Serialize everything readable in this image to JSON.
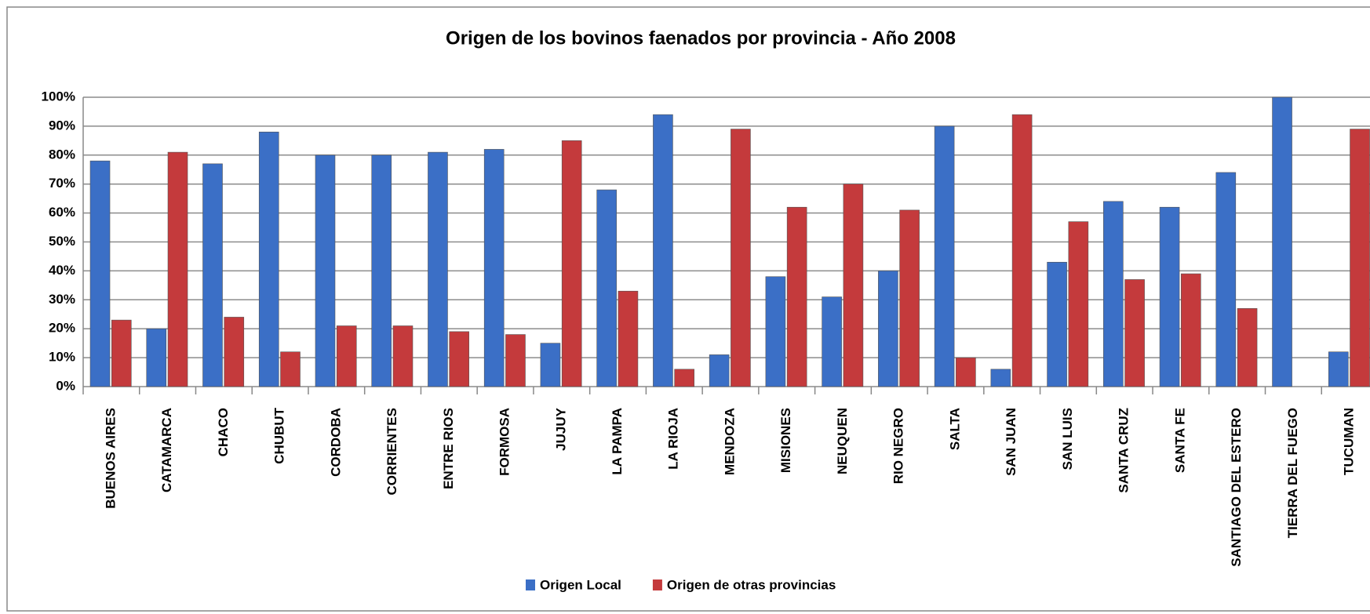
{
  "chart_data": {
    "type": "bar",
    "title": "Origen de los bovinos faenados por provincia - Año 2008",
    "categories": [
      "BUENOS AIRES",
      "CATAMARCA",
      "CHACO",
      "CHUBUT",
      "CORDOBA",
      "CORRIENTES",
      "ENTRE RIOS",
      "FORMOSA",
      "JUJUY",
      "LA PAMPA",
      "LA RIOJA",
      "MENDOZA",
      "MISIONES",
      "NEUQUEN",
      "RIO NEGRO",
      "SALTA",
      "SAN JUAN",
      "SAN LUIS",
      "SANTA CRUZ",
      "SANTA FE",
      "SANTIAGO DEL ESTERO",
      "TIERRA DEL FUEGO",
      "TUCUMAN"
    ],
    "series": [
      {
        "name": "Origen Local",
        "color": "#3b6fc6",
        "values": [
          78,
          20,
          77,
          88,
          80,
          80,
          81,
          82,
          15,
          68,
          94,
          11,
          38,
          31,
          40,
          90,
          6,
          43,
          64,
          62,
          74,
          100,
          12
        ]
      },
      {
        "name": "Origen de otras provincias",
        "color": "#c43a3c",
        "values": [
          23,
          81,
          24,
          12,
          21,
          21,
          19,
          18,
          85,
          33,
          6,
          89,
          62,
          70,
          61,
          10,
          94,
          57,
          37,
          39,
          27,
          0,
          89
        ]
      }
    ],
    "ylim": [
      0,
      100
    ],
    "yticks": [
      {
        "value": 0,
        "label": "0%"
      },
      {
        "value": 10,
        "label": "10%"
      },
      {
        "value": 20,
        "label": "20%"
      },
      {
        "value": 30,
        "label": "30%"
      },
      {
        "value": 40,
        "label": "40%"
      },
      {
        "value": 50,
        "label": "50%"
      },
      {
        "value": 60,
        "label": "60%"
      },
      {
        "value": 70,
        "label": "70%"
      },
      {
        "value": 80,
        "label": "80%"
      },
      {
        "value": 90,
        "label": "90%"
      },
      {
        "value": 100,
        "label": "100%"
      }
    ],
    "grid": true,
    "legend": "bottom"
  }
}
